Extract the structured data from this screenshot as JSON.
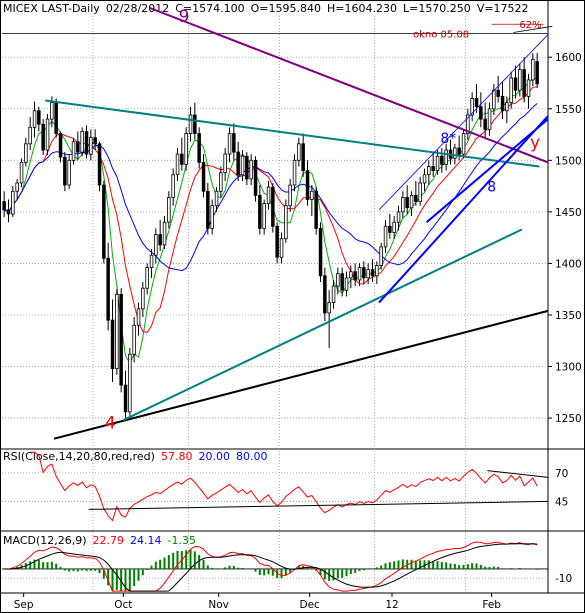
{
  "chart_data": {
    "type": "candlestick",
    "header": {
      "symbol": "MICEX LAST-Daily",
      "date": "02/28/2012",
      "fields": [
        {
          "label": "C=",
          "value": "1574.100"
        },
        {
          "label": "O=",
          "value": "1595.840"
        },
        {
          "label": "H=",
          "value": "1604.230"
        },
        {
          "label": "L=",
          "value": "1570.250"
        },
        {
          "label": "V=",
          "value": "17522"
        }
      ]
    },
    "price_axis": {
      "range": [
        1220,
        1640
      ],
      "ticks": [
        1250,
        1300,
        1350,
        1400,
        1450,
        1500,
        1550,
        1600
      ]
    },
    "x_axis": {
      "range": [
        0,
        126
      ],
      "labels": [
        {
          "text": "Sep",
          "at": 5
        },
        {
          "text": "Oct",
          "at": 28
        },
        {
          "text": "Nov",
          "at": 50
        },
        {
          "text": "Dec",
          "at": 71
        },
        {
          "text": "12",
          "at": 90
        },
        {
          "text": "Feb",
          "at": 113
        }
      ],
      "separators": [
        21,
        43,
        64,
        86,
        107
      ]
    },
    "price_line": {
      "label": "okno 05.08",
      "value": 1623
    },
    "fib_line": {
      "label": "62%",
      "value": 1632,
      "x_from": 113,
      "x_to": 125
    },
    "trendlines": [
      {
        "name": "long-support",
        "color": "#000000",
        "points": [
          [
            12,
            1230
          ],
          [
            126,
            1354
          ]
        ]
      },
      {
        "name": "wedge-lower",
        "color": "#008080",
        "points": [
          [
            28,
            1248
          ],
          [
            120,
            1433
          ]
        ]
      },
      {
        "name": "wedge-upper",
        "color": "#008080",
        "points": [
          [
            10,
            1558
          ],
          [
            124,
            1494
          ]
        ]
      },
      {
        "name": "purple-resistance",
        "color": "#800080",
        "points": [
          [
            34,
            1648
          ],
          [
            126,
            1498
          ]
        ]
      },
      {
        "name": "blue-support-1",
        "color": "#0000ff",
        "points": [
          [
            87,
            1362
          ],
          [
            126,
            1543
          ]
        ]
      },
      {
        "name": "blue-support-2",
        "color": "#0000ff",
        "points": [
          [
            98,
            1440
          ],
          [
            126,
            1540
          ]
        ]
      },
      {
        "name": "blue-channel-upper",
        "color": "#0000ff",
        "points": [
          [
            87,
            1452
          ],
          [
            126,
            1622
          ]
        ],
        "width": 0.8
      },
      {
        "name": "black-top",
        "color": "#000000",
        "points": [
          [
            118,
            1624
          ],
          [
            127,
            1630
          ]
        ],
        "width": 0.8
      }
    ],
    "annotations": [
      {
        "text": "9",
        "x": 42,
        "y": 1634,
        "color": "#800080",
        "size": "big"
      },
      {
        "text": "4",
        "x": 25,
        "y": 1240,
        "color": "#ff0000",
        "size": "big"
      },
      {
        "text": "8*",
        "x": 103,
        "y": 1517,
        "color": "#0000ff",
        "size": "mid"
      },
      {
        "text": "8",
        "x": 113,
        "y": 1470,
        "color": "#0000ff",
        "size": "mid"
      },
      {
        "text": "y",
        "x": 123,
        "y": 1512,
        "color": "#ff0000",
        "size": "big"
      }
    ],
    "ohlc": [
      [
        1460,
        1470,
        1445,
        1452
      ],
      [
        1452,
        1462,
        1440,
        1448
      ],
      [
        1448,
        1475,
        1445,
        1470
      ],
      [
        1470,
        1482,
        1462,
        1478
      ],
      [
        1478,
        1502,
        1474,
        1498
      ],
      [
        1498,
        1522,
        1494,
        1516
      ],
      [
        1516,
        1542,
        1510,
        1532
      ],
      [
        1532,
        1557,
        1522,
        1548
      ],
      [
        1548,
        1552,
        1528,
        1535
      ],
      [
        1535,
        1540,
        1505,
        1510
      ],
      [
        1510,
        1545,
        1505,
        1540
      ],
      [
        1540,
        1562,
        1532,
        1556
      ],
      [
        1556,
        1560,
        1522,
        1526
      ],
      [
        1526,
        1528,
        1498,
        1503
      ],
      [
        1503,
        1508,
        1470,
        1476
      ],
      [
        1476,
        1505,
        1472,
        1500
      ],
      [
        1500,
        1522,
        1496,
        1518
      ],
      [
        1518,
        1528,
        1500,
        1508
      ],
      [
        1508,
        1532,
        1504,
        1528
      ],
      [
        1528,
        1534,
        1502,
        1506
      ],
      [
        1506,
        1530,
        1500,
        1522
      ],
      [
        1522,
        1530,
        1510,
        1516
      ],
      [
        1516,
        1518,
        1470,
        1476
      ],
      [
        1476,
        1480,
        1400,
        1405
      ],
      [
        1405,
        1420,
        1335,
        1345
      ],
      [
        1345,
        1365,
        1285,
        1298
      ],
      [
        1298,
        1375,
        1292,
        1370
      ],
      [
        1370,
        1376,
        1275,
        1282
      ],
      [
        1282,
        1296,
        1250,
        1256
      ],
      [
        1256,
        1318,
        1252,
        1312
      ],
      [
        1312,
        1348,
        1304,
        1340
      ],
      [
        1340,
        1362,
        1330,
        1356
      ],
      [
        1356,
        1382,
        1348,
        1376
      ],
      [
        1376,
        1400,
        1370,
        1396
      ],
      [
        1396,
        1414,
        1386,
        1408
      ],
      [
        1408,
        1434,
        1400,
        1428
      ],
      [
        1428,
        1442,
        1412,
        1418
      ],
      [
        1418,
        1446,
        1414,
        1440
      ],
      [
        1440,
        1470,
        1434,
        1464
      ],
      [
        1464,
        1492,
        1456,
        1486
      ],
      [
        1486,
        1512,
        1480,
        1506
      ],
      [
        1506,
        1522,
        1490,
        1496
      ],
      [
        1496,
        1532,
        1490,
        1526
      ],
      [
        1526,
        1552,
        1518,
        1544
      ],
      [
        1544,
        1556,
        1520,
        1526
      ],
      [
        1526,
        1532,
        1492,
        1498
      ],
      [
        1498,
        1506,
        1464,
        1470
      ],
      [
        1470,
        1478,
        1428,
        1434
      ],
      [
        1434,
        1462,
        1428,
        1456
      ],
      [
        1456,
        1474,
        1450,
        1470
      ],
      [
        1470,
        1494,
        1464,
        1488
      ],
      [
        1488,
        1512,
        1480,
        1506
      ],
      [
        1506,
        1532,
        1498,
        1526
      ],
      [
        1526,
        1536,
        1500,
        1508
      ],
      [
        1508,
        1518,
        1480,
        1486
      ],
      [
        1486,
        1510,
        1480,
        1504
      ],
      [
        1504,
        1508,
        1476,
        1482
      ],
      [
        1482,
        1506,
        1476,
        1500
      ],
      [
        1500,
        1504,
        1460,
        1466
      ],
      [
        1466,
        1476,
        1428,
        1434
      ],
      [
        1434,
        1462,
        1428,
        1458
      ],
      [
        1458,
        1480,
        1452,
        1474
      ],
      [
        1474,
        1478,
        1430,
        1436
      ],
      [
        1436,
        1440,
        1400,
        1406
      ],
      [
        1406,
        1430,
        1400,
        1424
      ],
      [
        1424,
        1462,
        1420,
        1456
      ],
      [
        1456,
        1482,
        1450,
        1476
      ],
      [
        1476,
        1506,
        1470,
        1500
      ],
      [
        1500,
        1522,
        1494,
        1516
      ],
      [
        1516,
        1526,
        1484,
        1490
      ],
      [
        1490,
        1500,
        1456,
        1462
      ],
      [
        1462,
        1476,
        1446,
        1470
      ],
      [
        1470,
        1474,
        1428,
        1434
      ],
      [
        1434,
        1440,
        1382,
        1388
      ],
      [
        1388,
        1396,
        1344,
        1352
      ],
      [
        1352,
        1374,
        1318,
        1362
      ],
      [
        1362,
        1384,
        1356,
        1378
      ],
      [
        1378,
        1396,
        1370,
        1390
      ],
      [
        1390,
        1396,
        1368,
        1374
      ],
      [
        1374,
        1392,
        1368,
        1386
      ],
      [
        1386,
        1398,
        1376,
        1392
      ],
      [
        1392,
        1400,
        1378,
        1384
      ],
      [
        1384,
        1400,
        1378,
        1396
      ],
      [
        1396,
        1402,
        1380,
        1386
      ],
      [
        1386,
        1400,
        1380,
        1394
      ],
      [
        1394,
        1404,
        1382,
        1388
      ],
      [
        1388,
        1402,
        1380,
        1398
      ],
      [
        1398,
        1420,
        1394,
        1416
      ],
      [
        1416,
        1442,
        1410,
        1436
      ],
      [
        1436,
        1448,
        1424,
        1430
      ],
      [
        1430,
        1446,
        1424,
        1440
      ],
      [
        1440,
        1456,
        1432,
        1450
      ],
      [
        1450,
        1470,
        1444,
        1464
      ],
      [
        1464,
        1476,
        1448,
        1454
      ],
      [
        1454,
        1470,
        1446,
        1466
      ],
      [
        1466,
        1480,
        1456,
        1460
      ],
      [
        1460,
        1484,
        1456,
        1478
      ],
      [
        1478,
        1492,
        1470,
        1486
      ],
      [
        1486,
        1500,
        1476,
        1494
      ],
      [
        1494,
        1508,
        1484,
        1490
      ],
      [
        1490,
        1510,
        1486,
        1504
      ],
      [
        1504,
        1512,
        1488,
        1496
      ],
      [
        1496,
        1516,
        1490,
        1510
      ],
      [
        1510,
        1520,
        1496,
        1502
      ],
      [
        1502,
        1516,
        1496,
        1512
      ],
      [
        1512,
        1524,
        1500,
        1506
      ],
      [
        1506,
        1530,
        1502,
        1526
      ],
      [
        1526,
        1550,
        1520,
        1544
      ],
      [
        1544,
        1566,
        1538,
        1560
      ],
      [
        1560,
        1574,
        1546,
        1552
      ],
      [
        1552,
        1566,
        1532,
        1540
      ],
      [
        1540,
        1556,
        1522,
        1530
      ],
      [
        1530,
        1556,
        1524,
        1550
      ],
      [
        1550,
        1574,
        1544,
        1568
      ],
      [
        1568,
        1582,
        1556,
        1562
      ],
      [
        1562,
        1576,
        1540,
        1548
      ],
      [
        1548,
        1562,
        1536,
        1556
      ],
      [
        1556,
        1586,
        1550,
        1580
      ],
      [
        1580,
        1592,
        1560,
        1568
      ],
      [
        1568,
        1594,
        1562,
        1588
      ],
      [
        1588,
        1600,
        1556,
        1562
      ],
      [
        1562,
        1584,
        1550,
        1578
      ],
      [
        1578,
        1604,
        1572,
        1598
      ],
      [
        1595.84,
        1604.23,
        1570.25,
        1574.1
      ]
    ],
    "moving_averages": [
      {
        "name": "ma-green",
        "color": "#00b000",
        "period": 5
      },
      {
        "name": "ma-red",
        "color": "#ff0000",
        "period": 10
      },
      {
        "name": "ma-blue",
        "color": "#0000ff",
        "period": 20
      }
    ],
    "rsi": {
      "label": "RSI(Close,14,20,80,red,red)",
      "values_text": [
        {
          "text": "57.80",
          "color": "#ff0000"
        },
        {
          "text": "20.00",
          "color": "#0000ff"
        },
        {
          "text": "80.00",
          "color": "#0000ff"
        }
      ],
      "range": [
        20,
        90
      ],
      "ticks": [
        45,
        70
      ],
      "support_line": [
        [
          20,
          38
        ],
        [
          126,
          45
        ]
      ],
      "resistance_line": [
        [
          112,
          72
        ],
        [
          126,
          66
        ]
      ]
    },
    "macd": {
      "label": "MACD(12,26,9)",
      "values_text": [
        {
          "text": "22.79",
          "color": "#ff0000"
        },
        {
          "text": "24.14",
          "color": "#0000ff"
        },
        {
          "text": "-1.35",
          "color": "#008000"
        }
      ],
      "range": [
        -25,
        40
      ],
      "ticks": [
        -10
      ]
    }
  }
}
